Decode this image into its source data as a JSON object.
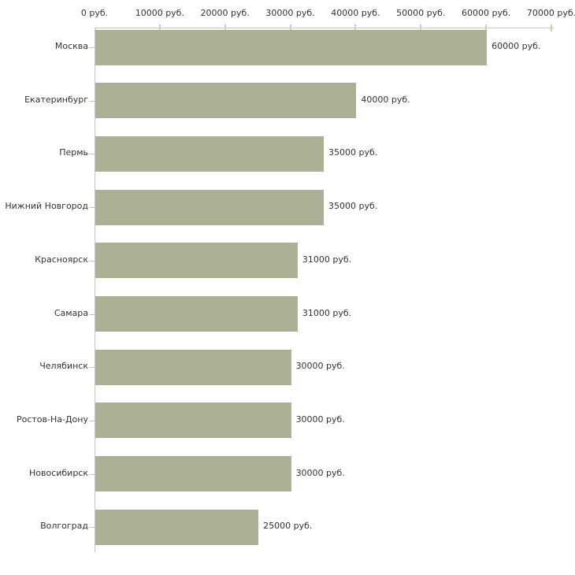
{
  "chart_data": {
    "type": "bar",
    "orientation": "horizontal",
    "title": "",
    "xlabel": "",
    "ylabel": "",
    "unit": "руб.",
    "categories": [
      "Москва",
      "Екатеринбург",
      "Пермь",
      "Нижний Новгород",
      "Красноярск",
      "Самара",
      "Челябинск",
      "Ростов-На-Дону",
      "Новосибирск",
      "Волгоград"
    ],
    "values": [
      60000,
      40000,
      35000,
      35000,
      31000,
      31000,
      30000,
      30000,
      30000,
      25000
    ],
    "value_labels": [
      "60000 руб.",
      "40000 руб.",
      "35000 руб.",
      "35000 руб.",
      "31000 руб.",
      "31000 руб.",
      "30000 руб.",
      "30000 руб.",
      "30000 руб.",
      "25000 руб."
    ],
    "x_ticks": [
      0,
      10000,
      20000,
      30000,
      40000,
      50000,
      60000,
      70000
    ],
    "x_tick_labels": [
      "0 руб.",
      "10000 руб.",
      "20000 руб.",
      "30000 руб.",
      "40000 руб.",
      "50000 руб.",
      "60000 руб.",
      "70000 руб."
    ],
    "xlim": [
      0,
      70000
    ],
    "grid": false,
    "legend": false,
    "axis_position": "top",
    "colors": {
      "bar": "#acb196",
      "axis": "#c6c6c6",
      "tick": "#cfceb2",
      "category_tick": "#c9c9ae",
      "text": "#333333",
      "background": "#ffffff"
    }
  }
}
